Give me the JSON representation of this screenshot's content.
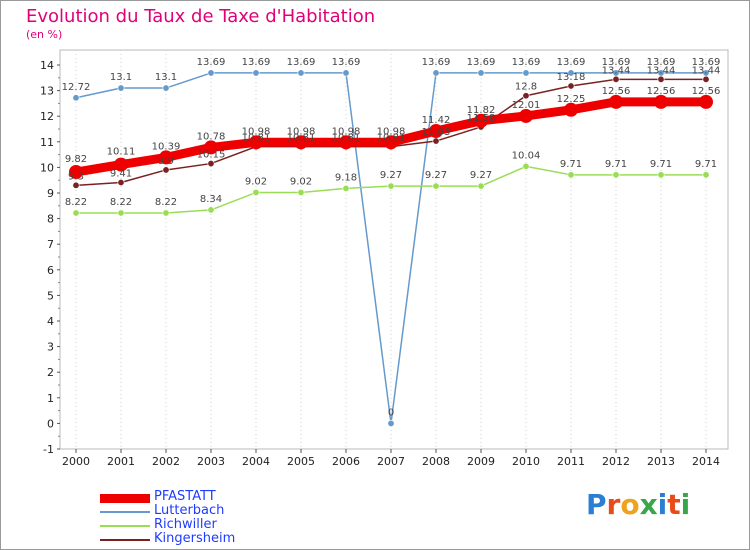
{
  "chart_data": {
    "type": "line",
    "title": "Evolution du Taux de Taxe d'Habitation",
    "ylabel": "(en %)",
    "x": [
      "2000",
      "2001",
      "2002",
      "2003",
      "2004",
      "2005",
      "2006",
      "2007",
      "2008",
      "2009",
      "2010",
      "2011",
      "2012",
      "2013",
      "2014"
    ],
    "ylim": [
      -1,
      14
    ],
    "yticks": [
      -1,
      0,
      1,
      2,
      3,
      4,
      5,
      6,
      7,
      8,
      9,
      10,
      11,
      12,
      13,
      14
    ],
    "grid": "dotted vertical",
    "legend": "bottom-left",
    "series": [
      {
        "name": "PFASTATT",
        "color": "#ee0000",
        "values": [
          9.82,
          10.11,
          10.39,
          10.78,
          10.98,
          10.98,
          10.98,
          10.98,
          11.42,
          11.82,
          12.01,
          12.25,
          12.56,
          12.56,
          12.56
        ]
      },
      {
        "name": "Lutterbach",
        "color": "#6699cc",
        "values": [
          12.72,
          13.1,
          13.1,
          13.69,
          13.69,
          13.69,
          13.69,
          0,
          13.69,
          13.69,
          13.69,
          13.69,
          13.69,
          13.69,
          13.69
        ]
      },
      {
        "name": "Richwiller",
        "color": "#99dd55",
        "values": [
          8.22,
          8.22,
          8.22,
          8.34,
          9.02,
          9.02,
          9.18,
          9.27,
          9.27,
          9.27,
          10.04,
          9.71,
          9.71,
          9.71,
          9.71
        ]
      },
      {
        "name": "Kingersheim",
        "color": "#7a2222",
        "values": [
          9.3,
          9.41,
          9.9,
          10.15,
          10.81,
          10.81,
          10.81,
          10.81,
          11.03,
          11.58,
          12.8,
          13.18,
          13.44,
          13.44,
          13.44
        ]
      }
    ]
  },
  "logo": {
    "text": "Proxiti"
  }
}
